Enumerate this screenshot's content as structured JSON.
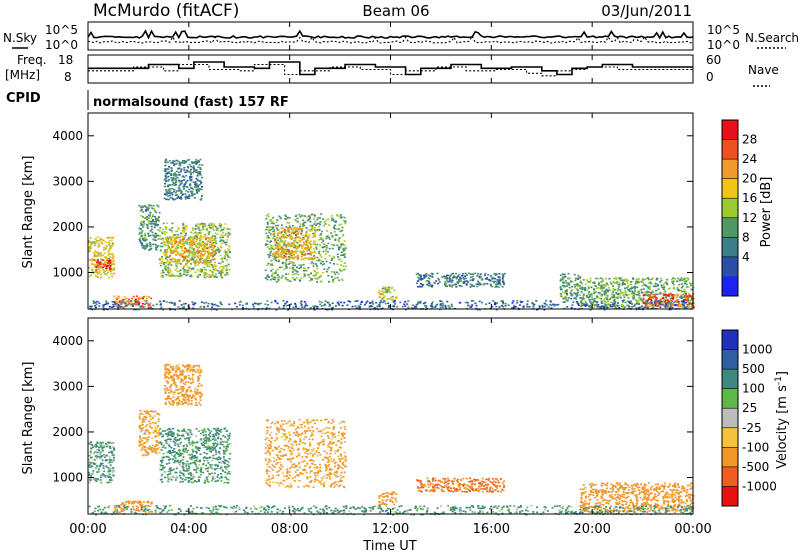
{
  "header": {
    "station": "McMurdo (fitACF)",
    "beam": "Beam 06",
    "date": "03/Jun/2011"
  },
  "noise_panel": {
    "left_label": "N.Sky",
    "left_ticks": [
      "10^5",
      "10^0"
    ],
    "right_label": "N.Search",
    "right_ticks": [
      "10^5",
      "10^0"
    ]
  },
  "freq_panel": {
    "left_label_1": "Freq.",
    "left_label_2": "[MHz]",
    "left_ticks": [
      "18",
      "8"
    ],
    "right_label": "Nave",
    "right_ticks": [
      "60",
      "0"
    ]
  },
  "cpid": {
    "label": "CPID",
    "text": "normalsound (fast) 157 RF"
  },
  "power_colorbar": {
    "label": "Power [dB]",
    "ticks": [
      "28",
      "24",
      "20",
      "16",
      "12",
      "8",
      "4"
    ],
    "colors": [
      "#e8101a",
      "#f04f1f",
      "#f29a2e",
      "#f1c518",
      "#9acb31",
      "#4f9a64",
      "#3b7e8c",
      "#2b4fa6",
      "#1e22f0"
    ]
  },
  "velocity_colorbar": {
    "label": "Velocity [m s",
    "label_sup": "-1",
    "label_end": "]",
    "ticks": [
      "1000",
      "500",
      "100",
      "25",
      "-25",
      "-100",
      "-500",
      "-1000"
    ],
    "colors": [
      "#2030b8",
      "#2f5fa0",
      "#3c8a7e",
      "#5cb945",
      "#bcbcbc",
      "#f5c23a",
      "#f1972a",
      "#ee5d1f",
      "#e81212"
    ]
  },
  "chart_data": {
    "type": "heatmap",
    "title": "McMurdo (fitACF)",
    "xlabel": "Time UT",
    "ylabel": "Slant Range [km]",
    "x_ticks": [
      "00:00",
      "04:00",
      "08:00",
      "12:00",
      "16:00",
      "20:00",
      "00:00"
    ],
    "y_ticks": [
      "1000",
      "2000",
      "3000",
      "4000"
    ],
    "xlim_hours": [
      0,
      24
    ],
    "ylim_km": [
      200,
      4500
    ],
    "grid": false,
    "panels": [
      {
        "name": "Power [dB]",
        "scale": [
          0,
          30
        ],
        "regions": [
          {
            "t_start": 0.0,
            "t_end": 1.0,
            "range_min": 900,
            "range_max": 1800,
            "value": 18
          },
          {
            "t_start": 0.2,
            "t_end": 0.9,
            "range_min": 1050,
            "range_max": 1300,
            "value": 28
          },
          {
            "t_start": 1.0,
            "t_end": 2.5,
            "range_min": 250,
            "range_max": 500,
            "value": 25
          },
          {
            "t_start": 2.0,
            "t_end": 2.8,
            "range_min": 1500,
            "range_max": 2500,
            "value": 10
          },
          {
            "t_start": 2.8,
            "t_end": 5.6,
            "range_min": 900,
            "range_max": 2100,
            "value": 14
          },
          {
            "t_start": 3.0,
            "t_end": 5.0,
            "range_min": 1200,
            "range_max": 1800,
            "value": 20
          },
          {
            "t_start": 3.0,
            "t_end": 4.5,
            "range_min": 2600,
            "range_max": 3500,
            "value": 8
          },
          {
            "t_start": 7.0,
            "t_end": 10.2,
            "range_min": 800,
            "range_max": 2300,
            "value": 12
          },
          {
            "t_start": 7.3,
            "t_end": 9.0,
            "range_min": 1300,
            "range_max": 2000,
            "value": 20
          },
          {
            "t_start": 11.5,
            "t_end": 12.2,
            "range_min": 400,
            "range_max": 700,
            "value": 16
          },
          {
            "t_start": 13.0,
            "t_end": 16.5,
            "range_min": 700,
            "range_max": 1000,
            "value": 8
          },
          {
            "t_start": 18.7,
            "t_end": 19.5,
            "range_min": 400,
            "range_max": 1000,
            "value": 10
          },
          {
            "t_start": 19.5,
            "t_end": 24.0,
            "range_min": 250,
            "range_max": 900,
            "value": 12
          },
          {
            "t_start": 22.0,
            "t_end": 24.0,
            "range_min": 250,
            "range_max": 550,
            "value": 26
          },
          {
            "t_start": 0.0,
            "t_end": 24.0,
            "range_min": 200,
            "range_max": 400,
            "value": 6
          }
        ]
      },
      {
        "name": "Velocity [m s^-1]",
        "scale": [
          -1000,
          1000
        ],
        "regions": [
          {
            "t_start": 0.0,
            "t_end": 1.0,
            "range_min": 900,
            "range_max": 1800,
            "value": 60
          },
          {
            "t_start": 1.0,
            "t_end": 2.5,
            "range_min": 250,
            "range_max": 500,
            "value": -150
          },
          {
            "t_start": 2.0,
            "t_end": 2.8,
            "range_min": 1500,
            "range_max": 2500,
            "value": -80
          },
          {
            "t_start": 2.8,
            "t_end": 5.6,
            "range_min": 900,
            "range_max": 2100,
            "value": 80
          },
          {
            "t_start": 3.0,
            "t_end": 4.5,
            "range_min": 2600,
            "range_max": 3500,
            "value": -120
          },
          {
            "t_start": 7.0,
            "t_end": 10.2,
            "range_min": 800,
            "range_max": 2300,
            "value": -90
          },
          {
            "t_start": 11.5,
            "t_end": 12.2,
            "range_min": 400,
            "range_max": 700,
            "value": -150
          },
          {
            "t_start": 13.0,
            "t_end": 16.5,
            "range_min": 700,
            "range_max": 1000,
            "value": -300
          },
          {
            "t_start": 19.5,
            "t_end": 24.0,
            "range_min": 250,
            "range_max": 900,
            "value": -150
          },
          {
            "t_start": 0.0,
            "t_end": 24.0,
            "range_min": 200,
            "range_max": 400,
            "value": 80
          }
        ]
      }
    ]
  }
}
